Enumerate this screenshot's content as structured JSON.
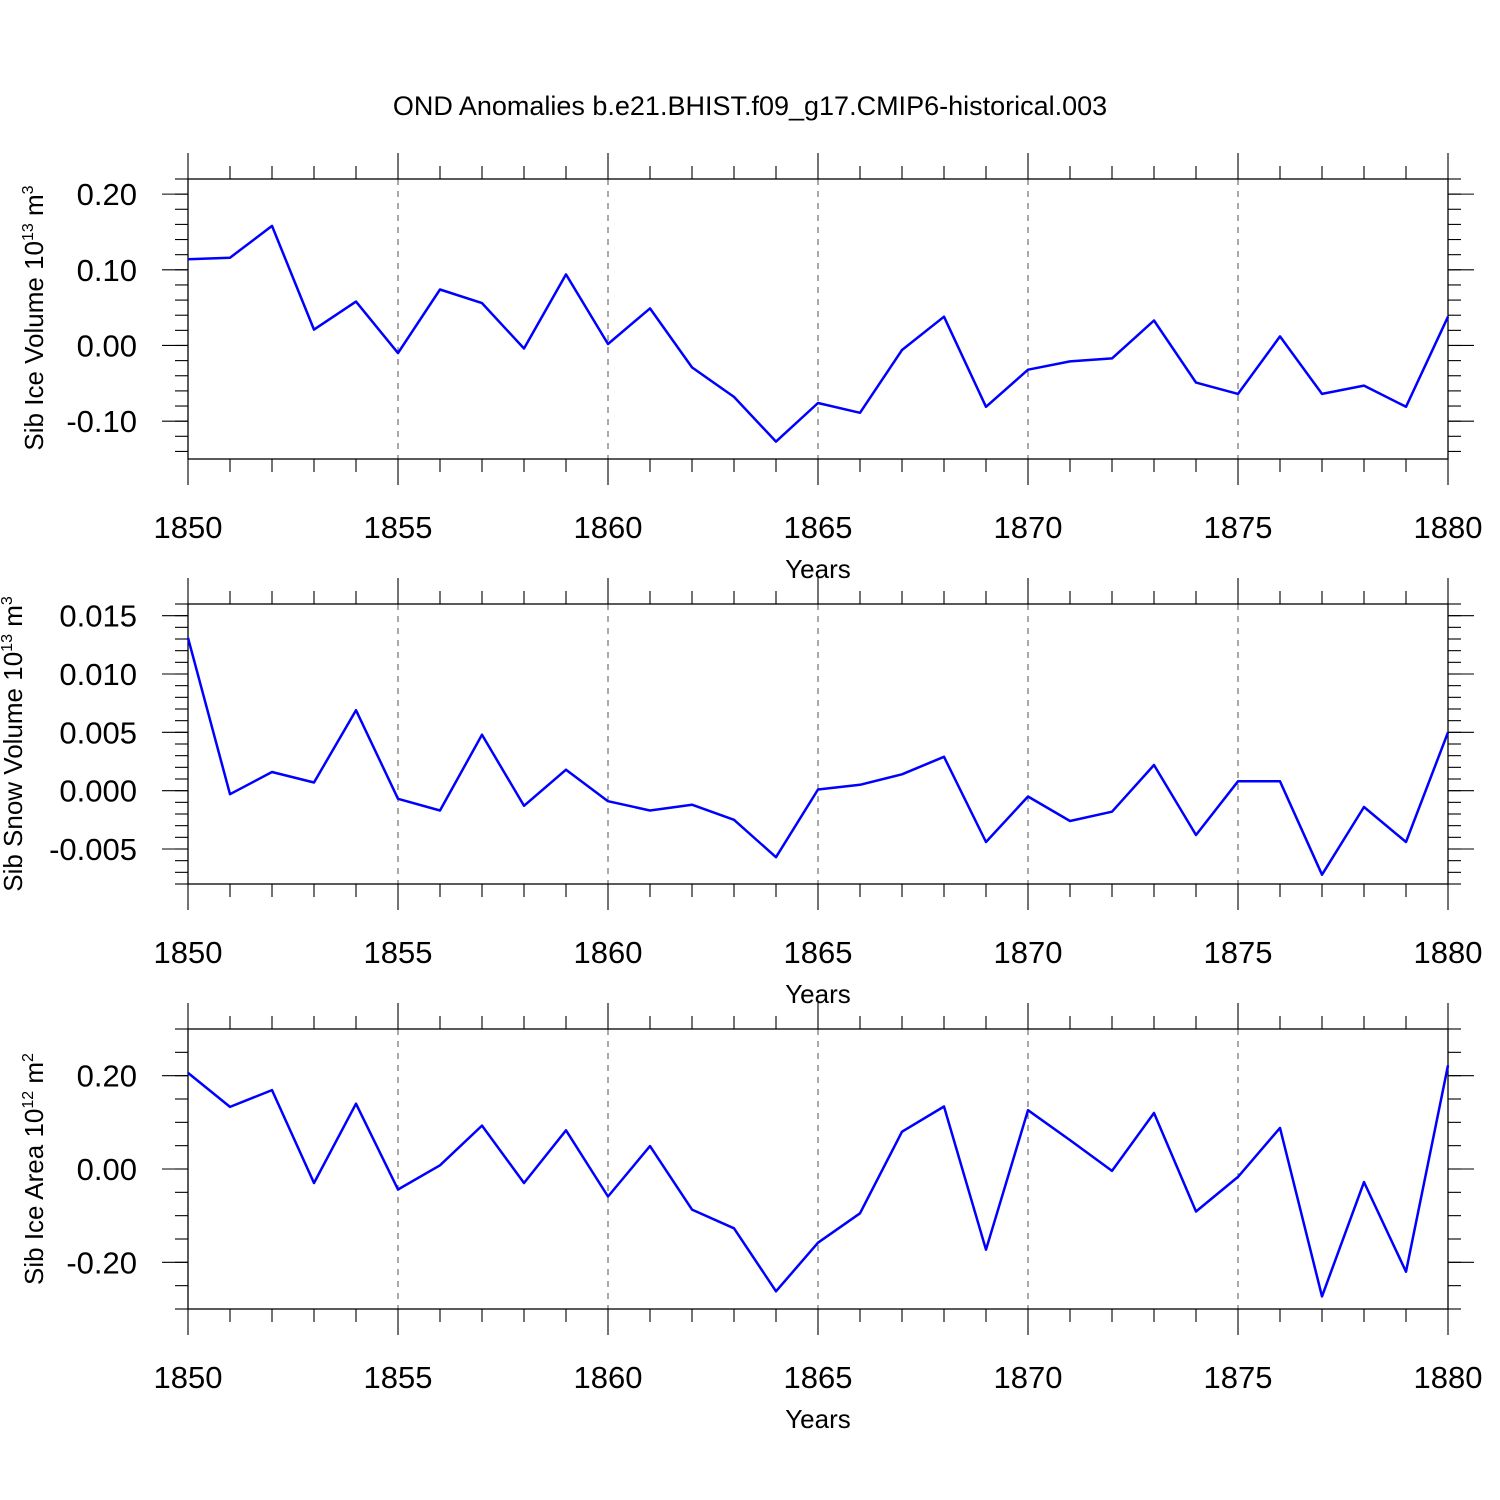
{
  "title": "OND Anomalies b.e21.BHIST.f09_g17.CMIP6-historical.003",
  "colors": {
    "series": "#0000ff",
    "axes": "#000000",
    "grid": "#555555"
  },
  "chart_data": [
    {
      "type": "line",
      "ylabel": {
        "text": "Sib Ice Volume 10",
        "sup": "13",
        "unit": " m",
        "unit_sup": "3"
      },
      "xlabel": "Years",
      "xlim": [
        1850,
        1880
      ],
      "ylim": [
        -0.15,
        0.22
      ],
      "x_ticks": [
        "1850",
        "1855",
        "1860",
        "1865",
        "1870",
        "1875",
        "1880"
      ],
      "y_ticks": [
        "0.20",
        "0.10",
        "0.00",
        "-0.10"
      ],
      "y_tick_values": [
        0.2,
        0.1,
        0.0,
        -0.1
      ],
      "y_minor_step": 0.02,
      "grid": "dashed vertical at major x ticks",
      "series": [
        {
          "x": [
            1850,
            1851,
            1852,
            1853,
            1854,
            1855,
            1856,
            1857,
            1858,
            1859,
            1860,
            1861,
            1862,
            1863,
            1864,
            1865,
            1866,
            1867,
            1868,
            1869,
            1870,
            1871,
            1872,
            1873,
            1874,
            1875,
            1876,
            1877,
            1878,
            1879,
            1880
          ],
          "values": [
            0.114,
            0.116,
            0.158,
            0.021,
            0.058,
            -0.01,
            0.074,
            0.056,
            -0.004,
            0.094,
            0.002,
            0.049,
            -0.029,
            -0.068,
            -0.127,
            -0.076,
            -0.089,
            -0.006,
            0.038,
            -0.081,
            -0.032,
            -0.021,
            -0.017,
            0.033,
            -0.049,
            -0.064,
            0.012,
            -0.064,
            -0.053,
            -0.081,
            0.038
          ]
        }
      ]
    },
    {
      "type": "line",
      "ylabel": {
        "text": "Sib Snow Volume 10",
        "sup": "13",
        "unit": " m",
        "unit_sup": "3"
      },
      "xlabel": "Years",
      "xlim": [
        1850,
        1880
      ],
      "ylim": [
        -0.008,
        0.016
      ],
      "x_ticks": [
        "1850",
        "1855",
        "1860",
        "1865",
        "1870",
        "1875",
        "1880"
      ],
      "y_ticks": [
        "0.015",
        "0.010",
        "0.005",
        "0.000",
        "-0.005"
      ],
      "y_tick_values": [
        0.015,
        0.01,
        0.005,
        0.0,
        -0.005
      ],
      "y_minor_step": 0.001,
      "grid": "dashed vertical at major x ticks",
      "series": [
        {
          "x": [
            1850,
            1851,
            1852,
            1853,
            1854,
            1855,
            1856,
            1857,
            1858,
            1859,
            1860,
            1861,
            1862,
            1863,
            1864,
            1865,
            1866,
            1867,
            1868,
            1869,
            1870,
            1871,
            1872,
            1873,
            1874,
            1875,
            1876,
            1877,
            1878,
            1879,
            1880
          ],
          "values": [
            0.0131,
            -0.0003,
            0.0016,
            0.0007,
            0.0069,
            -0.0007,
            -0.0017,
            0.0048,
            -0.0013,
            0.0018,
            -0.0009,
            -0.0017,
            -0.0012,
            -0.0025,
            -0.0057,
            0.0001,
            0.0005,
            0.0014,
            0.0029,
            -0.0044,
            -0.0005,
            -0.0026,
            -0.0018,
            0.0022,
            -0.0038,
            0.0008,
            0.0008,
            -0.0072,
            -0.0014,
            -0.0044,
            0.005
          ]
        }
      ]
    },
    {
      "type": "line",
      "ylabel": {
        "text": "Sib Ice Area 10",
        "sup": "12",
        "unit": " m",
        "unit_sup": "2"
      },
      "xlabel": "Years",
      "xlim": [
        1850,
        1880
      ],
      "ylim": [
        -0.3,
        0.3
      ],
      "x_ticks": [
        "1850",
        "1855",
        "1860",
        "1865",
        "1870",
        "1875",
        "1880"
      ],
      "y_ticks": [
        "0.20",
        "0.00",
        "-0.20"
      ],
      "y_tick_values": [
        0.2,
        0.0,
        -0.2
      ],
      "y_minor_step": 0.05,
      "grid": "dashed vertical at major x ticks",
      "series": [
        {
          "x": [
            1850,
            1851,
            1852,
            1853,
            1854,
            1855,
            1856,
            1857,
            1858,
            1859,
            1860,
            1861,
            1862,
            1863,
            1864,
            1865,
            1866,
            1867,
            1868,
            1869,
            1870,
            1871,
            1872,
            1873,
            1874,
            1875,
            1876,
            1877,
            1878,
            1879,
            1880
          ],
          "values": [
            0.206,
            0.133,
            0.169,
            -0.03,
            0.14,
            -0.044,
            0.008,
            0.093,
            -0.03,
            0.083,
            -0.059,
            0.049,
            -0.087,
            -0.127,
            -0.262,
            -0.158,
            -0.095,
            0.08,
            0.134,
            -0.173,
            0.126,
            0.062,
            -0.004,
            0.12,
            -0.091,
            -0.017,
            0.088,
            -0.273,
            -0.028,
            -0.22,
            0.222
          ]
        }
      ]
    }
  ]
}
